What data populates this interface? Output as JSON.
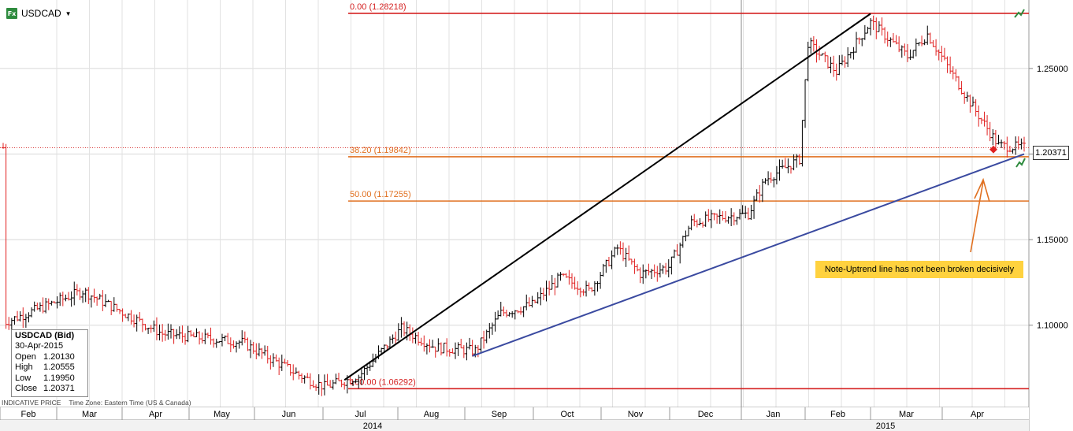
{
  "symbol": {
    "name": "USDCAD",
    "icon": "fx-icon",
    "dropdown": "▼"
  },
  "info_box": {
    "title": "USDCAD (Bid)",
    "date": "30-Apr-2015",
    "rows": [
      {
        "label": "Open",
        "value": "1.20130"
      },
      {
        "label": "High",
        "value": "1.20555"
      },
      {
        "label": "Low",
        "value": "1.19950"
      },
      {
        "label": "Close",
        "value": "1.20371"
      }
    ]
  },
  "footer": {
    "price_type": "INDICATIVE PRICE",
    "timezone": "Time Zone: Eastern Time (US & Canada)"
  },
  "note": "Note-Uptrend line has not been broken decisively",
  "chart_data": {
    "type": "ohlc",
    "y_ticks": [
      "1.25000",
      "1.20000",
      "1.15000",
      "1.10000"
    ],
    "y_tick_values": [
      1.25,
      1.2,
      1.15,
      1.1
    ],
    "ylim": [
      1.052,
      1.29
    ],
    "current_price": {
      "label": "1.20371",
      "value": 1.20371
    },
    "month_labels": [
      "Feb",
      "Mar",
      "Apr",
      "May",
      "Jun",
      "Jul",
      "Aug",
      "Sep",
      "Oct",
      "Nov",
      "Dec",
      "Jan",
      "Feb",
      "Mar",
      "Apr"
    ],
    "year_labels": [
      "2014",
      "2015"
    ],
    "fib_levels": [
      {
        "label": "0.00 (1.28218)",
        "value": 1.28218,
        "color": "#d42020"
      },
      {
        "label": "38.20 (1.19842)",
        "value": 1.19842,
        "color": "#e07020"
      },
      {
        "label": "50.00 (1.17255)",
        "value": 1.17255,
        "color": "#e07020"
      },
      {
        "label": "100.00 (1.06292)",
        "value": 1.06292,
        "color": "#d42020"
      }
    ],
    "trend_lines": [
      {
        "name": "channel",
        "color": "#000000",
        "from": [
          120,
          1.068
        ],
        "to": [
          305,
          1.282
        ]
      },
      {
        "name": "uptrend",
        "color": "#3a4aa0",
        "from": [
          165,
          1.082
        ],
        "to": [
          359,
          1.2
        ]
      }
    ],
    "anchors": [
      [
        1,
        1.102
      ],
      [
        28,
        1.12
      ],
      [
        56,
        1.095
      ],
      [
        84,
        1.09
      ],
      [
        105,
        1.07
      ],
      [
        113,
        1.064
      ],
      [
        125,
        1.07
      ],
      [
        140,
        1.098
      ],
      [
        152,
        1.087
      ],
      [
        166,
        1.085
      ],
      [
        175,
        1.107
      ],
      [
        186,
        1.112
      ],
      [
        196,
        1.128
      ],
      [
        206,
        1.12
      ],
      [
        216,
        1.145
      ],
      [
        224,
        1.13
      ],
      [
        234,
        1.134
      ],
      [
        242,
        1.16
      ],
      [
        252,
        1.163
      ],
      [
        262,
        1.165
      ],
      [
        268,
        1.185
      ],
      [
        280,
        1.197
      ],
      [
        283,
        1.265
      ],
      [
        293,
        1.248
      ],
      [
        305,
        1.277
      ],
      [
        318,
        1.257
      ],
      [
        325,
        1.27
      ],
      [
        334,
        1.246
      ],
      [
        342,
        1.225
      ],
      [
        350,
        1.205
      ],
      [
        359,
        1.2037
      ]
    ],
    "bars_count": 360
  }
}
